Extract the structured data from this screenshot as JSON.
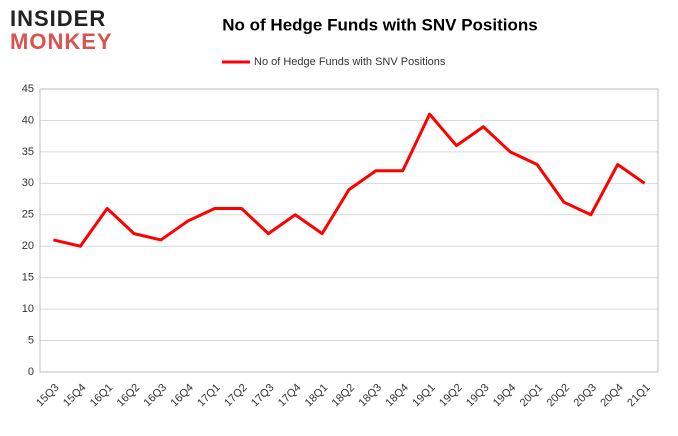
{
  "logo": {
    "line1": "INSIDER",
    "line2": "MONKEY"
  },
  "chart_data": {
    "type": "line",
    "title": "No of Hedge Funds with SNV Positions",
    "categories": [
      "15Q3",
      "15Q4",
      "16Q1",
      "16Q2",
      "16Q3",
      "16Q4",
      "17Q1",
      "17Q2",
      "17Q3",
      "17Q4",
      "18Q1",
      "18Q2",
      "18Q3",
      "18Q4",
      "19Q1",
      "19Q2",
      "19Q3",
      "19Q4",
      "20Q1",
      "20Q2",
      "20Q3",
      "20Q4",
      "21Q1"
    ],
    "series": [
      {
        "name": "No of Hedge Funds with SNV Positions",
        "color": "#ff0000",
        "values": [
          21,
          20,
          26,
          22,
          21,
          24,
          26,
          26,
          22,
          25,
          22,
          29,
          32,
          32,
          41,
          36,
          39,
          35,
          33,
          27,
          25,
          33,
          30
        ]
      }
    ],
    "ylim": [
      0,
      45
    ],
    "yticks": [
      0,
      5,
      10,
      15,
      20,
      25,
      30,
      35,
      40,
      45
    ],
    "grid": true,
    "legend": "top"
  }
}
